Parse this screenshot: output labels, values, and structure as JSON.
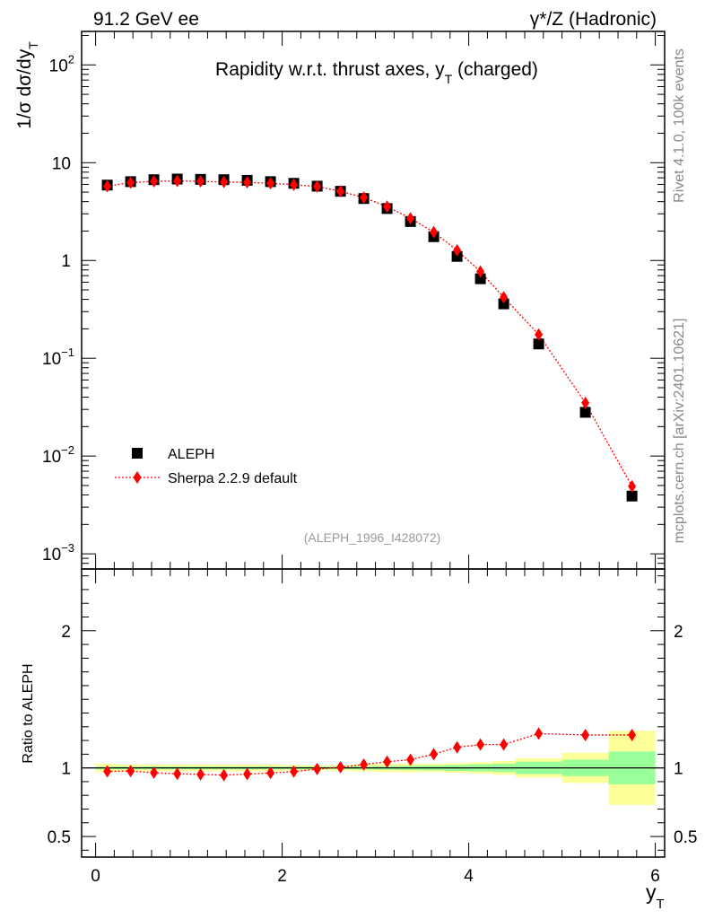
{
  "header": {
    "energy_label": "91.2 GeV ee",
    "process_label": "γ*/Z (Hadronic)"
  },
  "side_text": {
    "rivet_label": "Rivet 4.1.0,  100k events",
    "mcplots_label": "mcplots.cern.ch [arXiv:2401.10621]"
  },
  "chart_data": [
    {
      "type": "scatter",
      "panel": "main",
      "title": "Rapidity w.r.t. thrust axes, y_T (charged)",
      "title_main": "Rapidity w.r.t. thrust axes, y",
      "title_sub": "T",
      "title_tail": " (charged)",
      "ylabel_main": "1/σ  dσ/dy",
      "ylabel_sub": "T",
      "yscale": "log",
      "ylim": [
        0.0007,
        220
      ],
      "xlim": [
        -0.15,
        6.1
      ],
      "yticks": [
        {
          "v": 0.001,
          "base": "10",
          "exp": "−3"
        },
        {
          "v": 0.01,
          "base": "10",
          "exp": "−2"
        },
        {
          "v": 0.1,
          "base": "10",
          "exp": "−1"
        },
        {
          "v": 1,
          "base": "1",
          "exp": ""
        },
        {
          "v": 10,
          "base": "10",
          "exp": ""
        },
        {
          "v": 100,
          "base": "10",
          "exp": "2"
        }
      ],
      "watermark": "(ALEPH_1996_I428072)",
      "legend_position": "bottom-left",
      "series": [
        {
          "name": "ALEPH",
          "marker": "square",
          "color": "#000000",
          "x": [
            0.125,
            0.375,
            0.625,
            0.875,
            1.125,
            1.375,
            1.625,
            1.875,
            2.125,
            2.375,
            2.625,
            2.875,
            3.125,
            3.375,
            3.625,
            3.875,
            4.125,
            4.375,
            4.75,
            5.25,
            5.75
          ],
          "y": [
            5.9,
            6.4,
            6.7,
            6.8,
            6.75,
            6.7,
            6.6,
            6.4,
            6.15,
            5.75,
            5.1,
            4.3,
            3.4,
            2.5,
            1.75,
            1.1,
            0.65,
            0.36,
            0.14,
            0.028,
            0.0039
          ]
        },
        {
          "name": "Sherpa 2.2.9 default",
          "marker": "diamond",
          "color": "#ff0000",
          "line": "dotted",
          "x": [
            0.125,
            0.375,
            0.625,
            0.875,
            1.125,
            1.375,
            1.625,
            1.875,
            2.125,
            2.375,
            2.625,
            2.875,
            3.125,
            3.375,
            3.625,
            3.875,
            4.125,
            4.375,
            4.75,
            5.25,
            5.75
          ],
          "y": [
            5.75,
            6.25,
            6.45,
            6.5,
            6.45,
            6.35,
            6.3,
            6.15,
            5.95,
            5.7,
            5.1,
            4.4,
            3.55,
            2.7,
            1.95,
            1.27,
            0.77,
            0.42,
            0.175,
            0.035,
            0.0049
          ]
        }
      ]
    },
    {
      "type": "scatter",
      "panel": "ratio",
      "ylabel": "Ratio to ALEPH",
      "xlabel_main": "y",
      "xlabel_sub": "T",
      "ylim": [
        0.35,
        2.45
      ],
      "xlim": [
        -0.15,
        6.1
      ],
      "yticks": [
        0.5,
        1,
        2
      ],
      "ytick_labels": [
        "0.5",
        "1",
        "2"
      ],
      "xticks": [
        0,
        2,
        4,
        6
      ],
      "xtick_labels": [
        "0",
        "2",
        "4",
        "6"
      ],
      "bands": {
        "edges": [
          0,
          0.25,
          0.5,
          0.75,
          1.0,
          1.25,
          1.5,
          1.75,
          2.0,
          2.25,
          2.5,
          2.75,
          3.0,
          3.25,
          3.5,
          3.75,
          4.0,
          4.25,
          4.5,
          5.0,
          5.5,
          6.0
        ],
        "stat_color": "#99ff99",
        "syst_color": "#ffff99",
        "inner_half": [
          0.01,
          0.01,
          0.01,
          0.01,
          0.01,
          0.01,
          0.01,
          0.01,
          0.01,
          0.01,
          0.01,
          0.012,
          0.014,
          0.016,
          0.018,
          0.022,
          0.026,
          0.03,
          0.045,
          0.06,
          0.12
        ],
        "outer_half": [
          0.03,
          0.025,
          0.025,
          0.025,
          0.025,
          0.025,
          0.025,
          0.025,
          0.02,
          0.018,
          0.02,
          0.025,
          0.03,
          0.032,
          0.03,
          0.035,
          0.04,
          0.05,
          0.07,
          0.11,
          0.27
        ]
      },
      "series": [
        {
          "name": "Sherpa 2.2.9 default",
          "marker": "diamond",
          "color": "#ff0000",
          "line": "dotted",
          "x": [
            0.125,
            0.375,
            0.625,
            0.875,
            1.125,
            1.375,
            1.625,
            1.875,
            2.125,
            2.375,
            2.625,
            2.875,
            3.125,
            3.375,
            3.625,
            3.875,
            4.125,
            4.375,
            4.75,
            5.25,
            5.75
          ],
          "y": [
            0.975,
            0.977,
            0.965,
            0.957,
            0.953,
            0.947,
            0.955,
            0.963,
            0.973,
            0.992,
            1.005,
            1.025,
            1.045,
            1.06,
            1.1,
            1.15,
            1.17,
            1.17,
            1.25,
            1.24,
            1.24
          ]
        }
      ]
    }
  ]
}
